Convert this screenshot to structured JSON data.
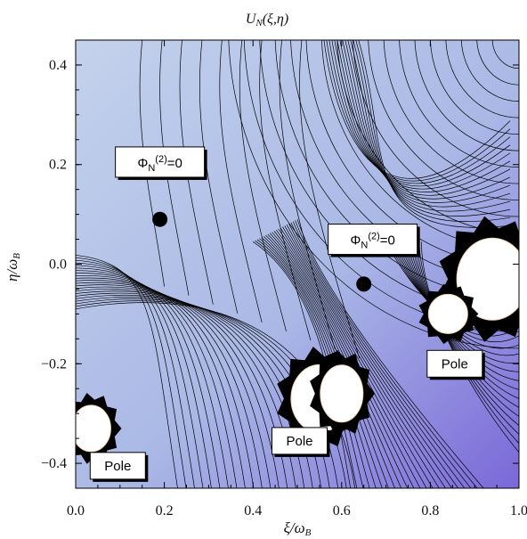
{
  "chart_data": {
    "type": "contour",
    "title": "U_N(ξ,η)",
    "xlabel": "ξ/ω_B",
    "ylabel": "η/ω_B",
    "xlim": [
      0.0,
      1.0
    ],
    "ylim": [
      -0.45,
      0.45
    ],
    "xticks": [
      0.0,
      0.2,
      0.4,
      0.6,
      0.8,
      1.0
    ],
    "xtick_labels": [
      "0.0",
      "0.2",
      "0.4",
      "0.6",
      "0.8",
      "1.0"
    ],
    "yticks": [
      -0.4,
      -0.2,
      0.0,
      0.2,
      0.4
    ],
    "ytick_labels": [
      "−0.4",
      "−0.2",
      "0.0",
      "0.2",
      "0.4"
    ],
    "grid": false,
    "colors": {
      "low": "#b8c8e8",
      "high": "#7a68d8",
      "contour": "#000000"
    },
    "saddle_points": [
      {
        "x": 0.19,
        "y": 0.09,
        "label": "Φ_N^(2)=0"
      },
      {
        "x": 0.65,
        "y": -0.04,
        "label": "Φ_N^(2)=0"
      }
    ],
    "poles": [
      {
        "x": 0.035,
        "y": -0.33
      },
      {
        "x": 0.55,
        "y": -0.27
      },
      {
        "x": 0.6,
        "y": -0.26
      },
      {
        "x": 0.94,
        "y": -0.03
      },
      {
        "x": 0.84,
        "y": -0.1
      }
    ],
    "annotations": [
      {
        "text": "Pole",
        "x": 0.095,
        "y": -0.405
      },
      {
        "text": "Pole",
        "x": 0.505,
        "y": -0.355
      },
      {
        "text": "Pole",
        "x": 0.855,
        "y": -0.2
      }
    ]
  }
}
